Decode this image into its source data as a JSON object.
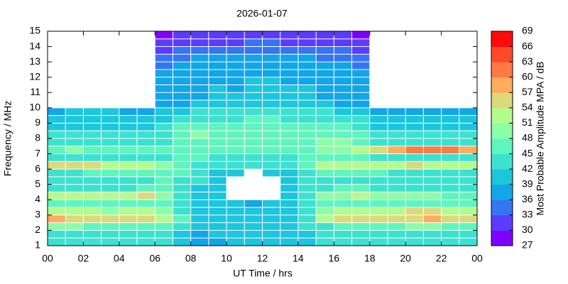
{
  "chart_data": {
    "type": "heatmap",
    "title": "2026-01-07",
    "x_label": "UT Time / hrs",
    "y_label": "Frequency / MHz",
    "xlim": [
      0,
      24
    ],
    "ylim": [
      1,
      15
    ],
    "xticks": [
      {
        "value": 0,
        "label": "00"
      },
      {
        "value": 2,
        "label": "02"
      },
      {
        "value": 4,
        "label": "04"
      },
      {
        "value": 6,
        "label": "06"
      },
      {
        "value": 8,
        "label": "08"
      },
      10,
      12,
      14,
      16,
      18,
      20,
      22,
      {
        "value": 24,
        "label": "00"
      }
    ],
    "yticks": [
      1,
      2,
      3,
      4,
      5,
      6,
      7,
      8,
      9,
      10,
      11,
      12,
      13,
      14,
      15
    ],
    "x": [
      0.5,
      1.5,
      2.5,
      3.5,
      4.5,
      5.5,
      6.5,
      7.5,
      8.5,
      9.5,
      10.5,
      11.5,
      12.5,
      13.5,
      14.5,
      15.5,
      16.5,
      17.5,
      18.5,
      19.5,
      20.5,
      21.5,
      22.5,
      23.5
    ],
    "y": [
      1.25,
      1.75,
      2.25,
      2.75,
      3.25,
      3.75,
      4.25,
      4.75,
      5.25,
      5.75,
      6.25,
      6.75,
      7.25,
      7.75,
      8.25,
      8.75,
      9.25,
      9.75,
      10.25,
      10.75,
      11.25,
      11.75,
      12.25,
      12.75,
      13.25,
      13.75,
      14.25,
      14.75
    ],
    "z": [
      [
        42,
        42,
        42,
        42,
        42,
        42,
        42,
        40,
        38,
        38,
        39,
        40,
        40,
        40,
        40,
        42,
        42,
        42,
        42,
        42,
        42,
        42,
        42,
        42
      ],
      [
        43,
        43,
        43,
        42,
        43,
        43,
        42,
        40,
        38,
        39,
        40,
        40,
        40,
        40,
        40,
        42,
        42,
        43,
        42,
        43,
        43,
        43,
        42,
        43
      ],
      [
        48,
        48,
        47,
        46,
        46,
        47,
        46,
        42,
        40,
        40,
        40,
        41,
        40,
        40,
        42,
        44,
        45,
        46,
        46,
        47,
        48,
        48,
        47,
        47
      ],
      [
        57,
        56,
        55,
        54,
        54,
        55,
        52,
        45,
        41,
        41,
        41,
        40,
        41,
        41,
        44,
        52,
        54,
        55,
        55,
        55,
        56,
        57,
        56,
        55
      ],
      [
        52,
        52,
        51,
        50,
        52,
        53,
        50,
        44,
        41,
        40,
        40,
        40,
        40,
        41,
        44,
        50,
        52,
        51,
        52,
        53,
        54,
        54,
        53,
        52
      ],
      [
        46,
        46,
        45,
        45,
        46,
        47,
        46,
        44,
        41,
        40,
        39,
        38,
        39,
        40,
        43,
        46,
        47,
        46,
        46,
        45,
        46,
        46,
        45,
        45
      ],
      [
        53,
        52,
        52,
        52,
        51,
        55,
        50,
        44,
        41,
        40,
        null,
        null,
        null,
        40,
        43,
        48,
        50,
        52,
        50,
        49,
        48,
        48,
        47,
        47
      ],
      [
        44,
        44,
        44,
        44,
        44,
        45,
        46,
        44,
        41,
        40,
        null,
        null,
        null,
        40,
        42,
        44,
        46,
        45,
        44,
        44,
        43,
        43,
        43,
        43
      ],
      [
        42,
        42,
        42,
        42,
        43,
        44,
        45,
        44,
        42,
        41,
        null,
        null,
        null,
        41,
        42,
        43,
        44,
        44,
        43,
        42,
        42,
        42,
        42,
        42
      ],
      [
        44,
        44,
        45,
        45,
        46,
        46,
        47,
        45,
        42,
        41,
        40,
        null,
        40,
        41,
        43,
        45,
        46,
        46,
        45,
        44,
        44,
        44,
        44,
        44
      ],
      [
        56,
        56,
        55,
        53,
        52,
        52,
        50,
        47,
        44,
        42,
        42,
        42,
        42,
        43,
        46,
        52,
        53,
        52,
        52,
        53,
        54,
        53,
        52,
        52
      ],
      [
        44,
        44,
        43,
        43,
        43,
        43,
        44,
        46,
        45,
        44,
        43,
        43,
        43,
        44,
        45,
        46,
        46,
        45,
        44,
        44,
        44,
        44,
        44,
        44
      ],
      [
        47,
        48,
        46,
        46,
        45,
        45,
        45,
        46,
        46,
        46,
        46,
        45,
        45,
        46,
        47,
        48,
        50,
        52,
        55,
        58,
        60,
        60,
        60,
        58
      ],
      [
        42,
        43,
        42,
        42,
        42,
        42,
        43,
        45,
        46,
        46,
        46,
        46,
        46,
        46,
        47,
        48,
        48,
        46,
        44,
        44,
        44,
        44,
        44,
        44
      ],
      [
        42,
        42,
        42,
        42,
        42,
        42,
        42,
        46,
        48,
        47,
        47,
        47,
        47,
        47,
        47,
        47,
        46,
        45,
        43,
        42,
        42,
        42,
        42,
        42
      ],
      [
        40,
        41,
        41,
        41,
        41,
        41,
        42,
        45,
        45,
        45,
        45,
        46,
        46,
        45,
        45,
        46,
        45,
        43,
        41,
        41,
        41,
        41,
        41,
        41
      ],
      [
        40,
        40,
        40,
        40,
        40,
        40,
        41,
        43,
        44,
        44,
        44,
        45,
        45,
        44,
        44,
        44,
        43,
        42,
        40,
        40,
        40,
        40,
        40,
        40
      ],
      [
        38,
        39,
        39,
        39,
        38,
        38,
        39,
        41,
        42,
        42,
        42,
        43,
        43,
        42,
        42,
        42,
        41,
        40,
        38,
        38,
        38,
        38,
        38,
        38
      ],
      [
        null,
        null,
        null,
        null,
        null,
        null,
        38,
        38,
        39,
        40,
        40,
        41,
        41,
        40,
        40,
        39,
        38,
        38,
        null,
        null,
        null,
        null,
        null,
        null
      ],
      [
        null,
        null,
        null,
        null,
        null,
        null,
        37,
        37,
        38,
        39,
        39,
        40,
        40,
        39,
        39,
        38,
        37,
        37,
        null,
        null,
        null,
        null,
        null,
        null
      ],
      [
        null,
        null,
        null,
        null,
        null,
        null,
        37,
        37,
        38,
        39,
        38,
        40,
        40,
        39,
        39,
        38,
        37,
        37,
        null,
        null,
        null,
        null,
        null,
        null
      ],
      [
        null,
        null,
        null,
        null,
        null,
        null,
        36,
        37,
        37,
        38,
        38,
        39,
        39,
        38,
        38,
        38,
        37,
        36,
        null,
        null,
        null,
        null,
        null,
        null
      ],
      [
        null,
        null,
        null,
        null,
        null,
        null,
        36,
        36,
        37,
        38,
        38,
        38,
        38,
        38,
        37,
        37,
        36,
        36,
        null,
        null,
        null,
        null,
        null,
        null
      ],
      [
        null,
        null,
        null,
        null,
        null,
        null,
        35,
        36,
        36,
        37,
        37,
        37,
        37,
        37,
        37,
        36,
        36,
        35,
        null,
        null,
        null,
        null,
        null,
        null
      ],
      [
        null,
        null,
        null,
        null,
        null,
        null,
        34,
        35,
        36,
        36,
        36,
        37,
        37,
        36,
        36,
        35,
        35,
        34,
        null,
        null,
        null,
        null,
        null,
        null
      ],
      [
        null,
        null,
        null,
        null,
        null,
        null,
        32,
        33,
        34,
        33,
        33,
        33,
        34,
        34,
        33,
        33,
        33,
        32,
        null,
        null,
        null,
        null,
        null,
        null
      ],
      [
        null,
        null,
        null,
        null,
        null,
        null,
        30,
        31,
        32,
        32,
        32,
        33,
        33,
        32,
        32,
        31,
        31,
        30,
        null,
        null,
        null,
        null,
        null,
        null
      ],
      [
        null,
        null,
        null,
        null,
        null,
        null,
        29,
        30,
        30,
        30,
        31,
        31,
        31,
        31,
        30,
        30,
        30,
        29,
        null,
        null,
        null,
        null,
        null,
        null
      ]
    ],
    "colorbar": {
      "label": "Most Probable Amplitude MPA / dB",
      "clim": [
        27,
        69
      ],
      "ticks": [
        27,
        30,
        33,
        36,
        39,
        42,
        45,
        48,
        51,
        54,
        57,
        60,
        63,
        66,
        69
      ],
      "colors": [
        "#8000ff",
        "#5b3cfd",
        "#3575f4",
        "#12a6e8",
        "#1cc6dd",
        "#3ce2cf",
        "#5ef5be",
        "#8bfea6",
        "#b4fb8d",
        "#dcd97c",
        "#ffac5e",
        "#ff7a46",
        "#ff4a2a",
        "#ff0a0a"
      ]
    }
  }
}
